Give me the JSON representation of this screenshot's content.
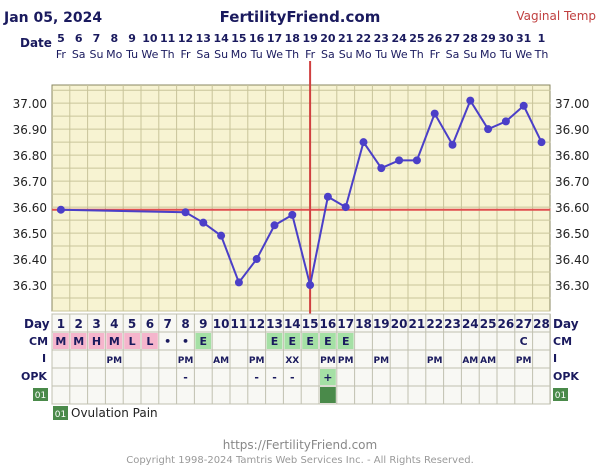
{
  "header": {
    "date": "Jan 05, 2024",
    "site": "FertilityFriend.com",
    "temp_type": "Vaginal Temp"
  },
  "row_labels": {
    "date": "Date",
    "day": "Day",
    "cm": "CM",
    "intercourse": "I",
    "opk": "OPK",
    "custom": "01"
  },
  "dates": [
    "5",
    "6",
    "7",
    "8",
    "9",
    "10",
    "11",
    "12",
    "13",
    "14",
    "15",
    "16",
    "17",
    "18",
    "19",
    "20",
    "21",
    "22",
    "23",
    "24",
    "25",
    "26",
    "27",
    "28",
    "29",
    "30",
    "31",
    "1"
  ],
  "weekdays": [
    "Fr",
    "Sa",
    "Su",
    "Mo",
    "Tu",
    "We",
    "Th",
    "Fr",
    "Sa",
    "Su",
    "Mo",
    "Tu",
    "We",
    "Th",
    "Fr",
    "Sa",
    "Su",
    "Mo",
    "Tu",
    "We",
    "Th",
    "Fr",
    "Sa",
    "Su",
    "Mo",
    "Tu",
    "We",
    "Th"
  ],
  "cycle_days": [
    "1",
    "2",
    "3",
    "4",
    "5",
    "6",
    "7",
    "8",
    "9",
    "10",
    "11",
    "12",
    "13",
    "14",
    "15",
    "16",
    "17",
    "18",
    "19",
    "20",
    "21",
    "22",
    "23",
    "24",
    "25",
    "26",
    "27",
    "28"
  ],
  "cm": [
    "M",
    "M",
    "H",
    "M",
    "L",
    "L",
    "•",
    "•",
    "E",
    "",
    "",
    "",
    "E",
    "E",
    "E",
    "E",
    "E",
    "",
    "",
    "",
    "",
    "",
    "",
    "",
    "",
    "",
    "C",
    ""
  ],
  "intercourse": [
    "",
    "",
    "",
    "PM",
    "",
    "",
    "",
    "PM",
    "",
    "AM",
    "",
    "PM",
    "",
    "XX",
    "",
    "PM",
    "PM",
    "",
    "PM",
    "",
    "",
    "PM",
    "",
    "AM",
    "AM",
    "",
    "PM",
    ""
  ],
  "opk": [
    "",
    "",
    "",
    "",
    "",
    "",
    "",
    "-",
    "",
    "",
    "",
    "-",
    "-",
    "-",
    "",
    "+",
    "",
    "",
    "",
    "",
    "",
    "",
    "",
    "",
    "",
    "",
    "",
    ""
  ],
  "legend": {
    "code": "01",
    "label": "Ovulation Pain"
  },
  "footer": {
    "url": "https://FertilityFriend.com",
    "copyright": "Copyright 1998-2024 Tamtris Web Services Inc. - All Rights Reserved."
  },
  "colors": {
    "plot_bg": "#f7f3d2",
    "grid": "#c8c49a",
    "line": "#4b3fc8",
    "coverline": "#e05050",
    "ovulation": "#d04040",
    "cm_pink": "#f5b5cc",
    "cm_green": "#a5e0a5",
    "custom_green": "#4a8a4a",
    "navy": "#1a1a5e"
  },
  "chart_data": {
    "type": "line",
    "x": [
      1,
      2,
      3,
      4,
      5,
      6,
      7,
      8,
      9,
      10,
      11,
      12,
      13,
      14,
      15,
      16,
      17,
      18,
      19,
      20,
      21,
      22,
      23,
      24,
      25,
      26,
      27,
      28
    ],
    "series": [
      {
        "values": [
          36.59,
          null,
          null,
          null,
          null,
          null,
          null,
          36.58,
          36.54,
          36.49,
          36.31,
          36.4,
          36.53,
          36.57,
          36.3,
          36.64,
          36.6,
          36.85,
          36.75,
          36.78,
          36.78,
          36.96,
          36.84,
          37.01,
          36.9,
          36.93,
          36.99,
          36.85
        ]
      }
    ],
    "ylim": [
      36.2,
      37.07
    ],
    "yticks": [
      "36.30",
      "36.40",
      "36.50",
      "36.60",
      "36.70",
      "36.80",
      "36.90",
      "37.00"
    ],
    "coverline": 36.59,
    "ovulation_day": 15,
    "grid": true
  }
}
